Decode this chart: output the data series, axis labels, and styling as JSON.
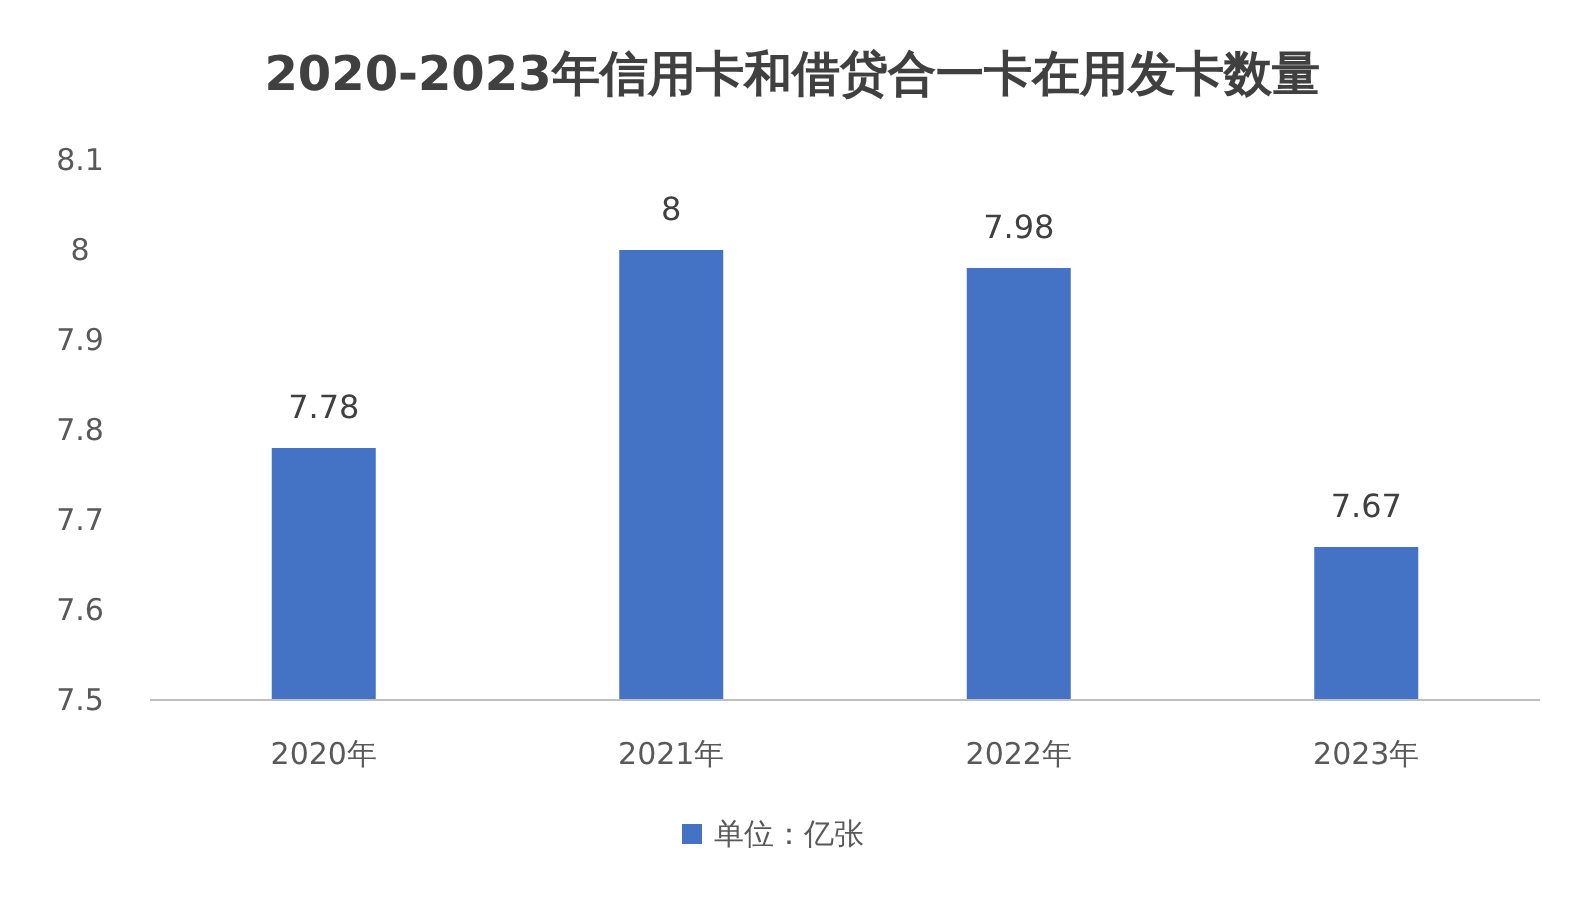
{
  "chart_data": {
    "type": "bar",
    "title": "2020-2023年信用卡和借贷合一卡在用发卡数量",
    "categories": [
      "2020年",
      "2021年",
      "2022年",
      "2023年"
    ],
    "series": [
      {
        "name": "单位：亿张",
        "color": "#4472c4",
        "values": [
          7.78,
          8,
          7.98,
          7.67
        ]
      }
    ],
    "ylim": [
      7.5,
      8.1
    ],
    "yticks": [
      7.5,
      7.6,
      7.7,
      7.8,
      7.9,
      8,
      8.1
    ],
    "data_labels": true,
    "legend": "bottom"
  }
}
